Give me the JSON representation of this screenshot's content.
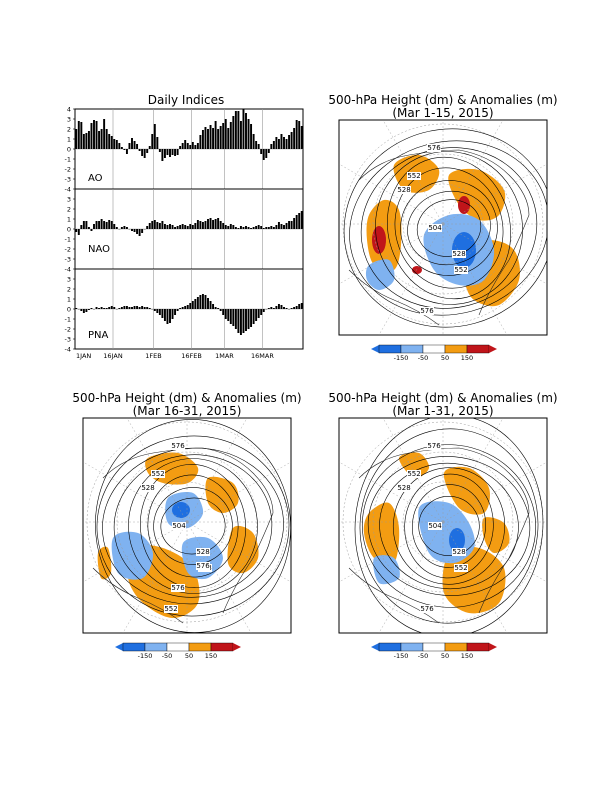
{
  "chart_data": [
    {
      "type": "bar",
      "title": "Daily Indices",
      "x_tick_labels": [
        "1JAN",
        "16JAN",
        "1FEB",
        "16FEB",
        "1MAR",
        "16MAR"
      ],
      "y_ticks": [
        "4",
        "3",
        "2",
        "1",
        "0",
        "-1",
        "-2",
        "-3",
        "-4"
      ],
      "ylim": [
        -4,
        4
      ],
      "grid": true,
      "panels": [
        {
          "name": "AO",
          "values": [
            2.0,
            2.8,
            2.7,
            1.5,
            1.6,
            1.8,
            2.6,
            2.9,
            2.8,
            1.8,
            2.0,
            3.0,
            2.0,
            1.5,
            1.3,
            1.0,
            0.9,
            0.6,
            0.2,
            -0.1,
            -0.5,
            0.6,
            1.1,
            0.8,
            0.5,
            -0.2,
            -0.7,
            -0.9,
            -0.4,
            0.3,
            1.5,
            2.5,
            1.2,
            -0.3,
            -1.2,
            -0.9,
            -0.6,
            -0.8,
            -0.6,
            -0.7,
            -0.6,
            0.3,
            0.6,
            0.9,
            0.6,
            0.4,
            0.7,
            0.4,
            0.6,
            1.4,
            1.9,
            2.2,
            2.0,
            2.4,
            2.1,
            2.8,
            2.0,
            2.3,
            2.6,
            3.0,
            2.1,
            2.7,
            3.3,
            3.8,
            3.8,
            2.8,
            4.0,
            3.6,
            3.0,
            2.5,
            1.5,
            0.8,
            0.5,
            -0.5,
            -1.1,
            -0.9,
            -0.4,
            0.5,
            0.8,
            1.2,
            1.0,
            1.5,
            1.2,
            1.0,
            1.4,
            1.7,
            2.1,
            2.9,
            2.8,
            2.3
          ]
        },
        {
          "name": "NAO",
          "values": [
            -0.3,
            -0.6,
            0.4,
            0.8,
            0.8,
            0.2,
            -0.2,
            0.5,
            0.8,
            0.8,
            1.0,
            0.8,
            0.7,
            0.9,
            0.8,
            0.5,
            0.2,
            0.0,
            0.2,
            0.3,
            0.2,
            0.0,
            -0.2,
            -0.3,
            -0.5,
            -0.7,
            -0.4,
            0.0,
            0.3,
            0.6,
            0.8,
            0.9,
            0.7,
            0.6,
            0.8,
            0.5,
            0.4,
            0.5,
            0.4,
            0.2,
            0.3,
            0.4,
            0.5,
            0.4,
            0.3,
            0.5,
            0.4,
            0.6,
            0.9,
            0.8,
            0.7,
            0.8,
            1.0,
            1.1,
            0.9,
            1.0,
            1.1,
            0.8,
            0.6,
            0.4,
            0.3,
            0.5,
            0.4,
            0.2,
            0.1,
            0.3,
            0.2,
            0.3,
            0.2,
            0.1,
            0.2,
            0.3,
            0.4,
            0.3,
            0.1,
            0.2,
            0.2,
            0.3,
            0.2,
            0.4,
            0.7,
            0.5,
            0.4,
            0.6,
            0.8,
            0.8,
            1.1,
            1.4,
            1.6,
            1.8
          ]
        },
        {
          "name": "PNA",
          "values": [
            0.1,
            0.0,
            -0.2,
            -0.4,
            -0.3,
            -0.1,
            0.1,
            0.0,
            0.2,
            0.1,
            0.2,
            0.1,
            0.1,
            0.2,
            0.3,
            0.2,
            0.0,
            0.1,
            0.2,
            0.3,
            0.3,
            0.2,
            0.2,
            0.3,
            0.3,
            0.2,
            0.3,
            0.2,
            0.2,
            0.1,
            0.0,
            -0.2,
            -0.4,
            -0.6,
            -0.9,
            -1.2,
            -1.5,
            -1.4,
            -1.0,
            -0.6,
            -0.2,
            0.1,
            0.2,
            0.3,
            0.4,
            0.6,
            0.8,
            1.0,
            1.2,
            1.4,
            1.5,
            1.4,
            1.1,
            0.8,
            0.5,
            0.2,
            0.1,
            -0.2,
            -0.6,
            -1.0,
            -1.2,
            -1.5,
            -1.7,
            -2.0,
            -2.4,
            -2.6,
            -2.4,
            -2.2,
            -2.0,
            -1.8,
            -1.5,
            -1.2,
            -0.9,
            -0.6,
            -0.3,
            0.0,
            0.1,
            0.2,
            0.1,
            0.3,
            0.5,
            0.4,
            0.2,
            0.1,
            0.0,
            0.1,
            0.2,
            0.3,
            0.5,
            0.6
          ]
        }
      ]
    },
    {
      "type": "map",
      "title": "500-hPa Height (dm) & Anomalies (m)",
      "subtitle": "(Mar 1-15, 2015)",
      "contour_labels": [
        "576",
        "552",
        "528",
        "504",
        "528",
        "552",
        "576"
      ],
      "color_scale": [
        "-150",
        "-50",
        "50",
        "150"
      ]
    },
    {
      "type": "map",
      "title": "500-hPa Height (dm) & Anomalies (m)",
      "subtitle": "(Mar 16-31, 2015)",
      "contour_labels": [
        "576",
        "552",
        "528",
        "504",
        "528",
        "528",
        "552",
        "576",
        "576"
      ],
      "color_scale": [
        "-150",
        "-50",
        "50",
        "150"
      ]
    },
    {
      "type": "map",
      "title": "500-hPa Height (dm) & Anomalies (m)",
      "subtitle": "(Mar 1-31, 2015)",
      "contour_labels": [
        "576",
        "552",
        "528",
        "504",
        "528",
        "552",
        "576"
      ],
      "color_scale": [
        "-150",
        "-50",
        "50",
        "150"
      ]
    }
  ],
  "colors": {
    "strong_negative": "#1f6fe0",
    "weak_negative": "#7fb2f0",
    "weak_positive": "#f39c12",
    "strong_positive": "#c0151a",
    "bar": "#000000"
  }
}
